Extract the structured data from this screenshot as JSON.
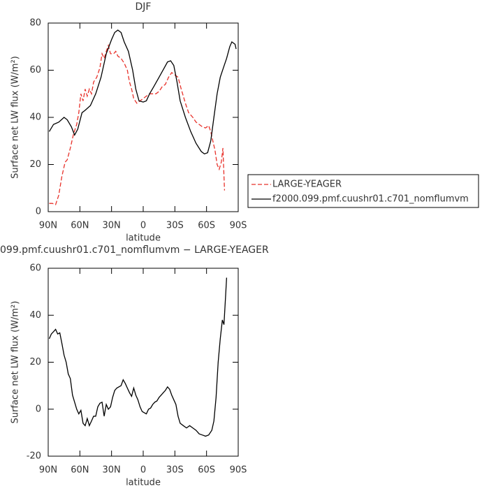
{
  "chart_data": [
    {
      "type": "line",
      "title": "DJF",
      "xlabel": "latitude",
      "ylabel": "Surface net LW flux (W/m²)",
      "xlim": [
        90,
        -90
      ],
      "ylim": [
        0,
        80
      ],
      "xticks": [
        {
          "value": 90,
          "label": "90N"
        },
        {
          "value": 60,
          "label": "60N"
        },
        {
          "value": 30,
          "label": "30N"
        },
        0,
        {
          "value": -30,
          "label": "30S"
        },
        {
          "value": -60,
          "label": "60S"
        },
        {
          "value": -90,
          "label": "90S"
        }
      ],
      "yticks": [
        0,
        20,
        40,
        60,
        80
      ],
      "legend": "right",
      "series": [
        {
          "name": "LARGE-YEAGER",
          "color": "#e8312a",
          "style": "dashed",
          "x": [
            89,
            86,
            83,
            80,
            77,
            74,
            72,
            69,
            66,
            63,
            61,
            59,
            57,
            55,
            53,
            51,
            49,
            47,
            44,
            41,
            39,
            37,
            35,
            33,
            31,
            28,
            26,
            24,
            21,
            18,
            15,
            13,
            11,
            9,
            6,
            3,
            0,
            -3,
            -6,
            -9,
            -12,
            -15,
            -18,
            -21,
            -24,
            -27,
            -30,
            -33,
            -36,
            -40,
            -43,
            -47,
            -50,
            -53,
            -56,
            -59,
            -62,
            -64,
            -66,
            -68,
            -70,
            -72,
            -74,
            -75.5,
            -77
          ],
          "values": [
            3.5,
            3.5,
            3,
            7,
            15,
            21,
            22,
            27,
            33,
            37,
            42,
            50,
            47,
            52,
            49,
            52,
            50,
            55,
            57,
            61,
            67,
            65,
            68,
            70.5,
            67,
            67,
            68,
            66,
            65,
            63,
            60,
            55,
            52,
            48,
            46,
            47,
            48,
            49,
            50,
            50,
            50,
            51,
            53,
            54,
            57,
            59,
            58,
            57,
            52,
            46,
            42,
            40,
            38,
            37,
            36,
            35.5,
            36.5,
            34,
            30,
            26,
            20,
            18,
            21,
            27,
            9
          ]
        },
        {
          "name": "f2000.099.pmf.cuushr01.c701_nomflumvm",
          "color": "#000000",
          "style": "solid",
          "x": [
            89,
            85,
            80,
            75,
            72,
            68,
            65,
            62,
            58,
            55,
            50,
            45,
            40,
            35,
            30,
            27,
            24,
            21,
            18,
            14,
            10,
            7,
            4,
            0,
            -3,
            -6,
            -10,
            -15,
            -20,
            -23,
            -26,
            -29,
            -32,
            -35,
            -40,
            -45,
            -50,
            -55,
            -58,
            -61,
            -64,
            -67,
            -70,
            -73,
            -76,
            -79,
            -82,
            -84,
            -87,
            -88
          ],
          "values": [
            34,
            37,
            38,
            40,
            39,
            36,
            32.5,
            35,
            42,
            43,
            45,
            50,
            57,
            67,
            73,
            76,
            77,
            76,
            72,
            68,
            60,
            52,
            47,
            46.5,
            47,
            50,
            53,
            57,
            61,
            63.5,
            64,
            62,
            55,
            47,
            40,
            34,
            29,
            25.5,
            24.5,
            25,
            30,
            40,
            50,
            57,
            61,
            65,
            70,
            72,
            71,
            69
          ]
        }
      ]
    },
    {
      "type": "line",
      "title": "099.pmf.cuushr01.c701_nomflumvm − LARGE-YEAGER",
      "xlabel": "latitude",
      "ylabel": "Surface net LW flux (W/m²)",
      "xlim": [
        90,
        -90
      ],
      "ylim": [
        -20,
        60
      ],
      "xticks": [
        {
          "value": 90,
          "label": "90N"
        },
        {
          "value": 60,
          "label": "60N"
        },
        {
          "value": 30,
          "label": "30N"
        },
        0,
        {
          "value": -30,
          "label": "30S"
        },
        {
          "value": -60,
          "label": "60S"
        },
        {
          "value": -90,
          "label": "90S"
        }
      ],
      "yticks": [
        -20,
        0,
        20,
        40,
        60
      ],
      "series": [
        {
          "color": "#000000",
          "style": "solid",
          "x": [
            89,
            87,
            85,
            83,
            81,
            79,
            77,
            75,
            73,
            71,
            69,
            67,
            65,
            63,
            61,
            59,
            57,
            55,
            53,
            51,
            49,
            47,
            45,
            43,
            41,
            39,
            37,
            35,
            33,
            31,
            29,
            27,
            25,
            23,
            21,
            19,
            17,
            15,
            13,
            11,
            9,
            7,
            5,
            3,
            1,
            -1,
            -3,
            -5,
            -7,
            -9,
            -11,
            -13,
            -15,
            -17,
            -19,
            -21,
            -23,
            -25,
            -27,
            -29,
            -31,
            -33,
            -35,
            -38,
            -41,
            -44,
            -47,
            -50,
            -53,
            -56,
            -59,
            -62,
            -65,
            -67,
            -69,
            -71,
            -73,
            -75,
            -76.5,
            -78,
            -79
          ],
          "values": [
            30,
            32,
            33,
            34,
            32,
            32.5,
            28,
            23,
            20,
            15,
            13,
            6,
            3,
            0,
            -2,
            -0.5,
            -6,
            -7,
            -4,
            -7,
            -5,
            -3,
            -3,
            1,
            2.5,
            3,
            -3,
            2,
            0,
            1,
            5,
            8,
            9,
            9.5,
            10,
            12.5,
            11,
            9,
            7,
            5.5,
            9,
            6,
            4,
            1,
            -1,
            -1.5,
            -2,
            0,
            0.5,
            2,
            3,
            3.5,
            5,
            6,
            7,
            8,
            9.5,
            8.5,
            6,
            4,
            2,
            -3,
            -6,
            -7,
            -8,
            -7,
            -8,
            -9,
            -10.5,
            -11,
            -11.5,
            -11,
            -9,
            -5,
            5,
            20,
            30,
            38,
            36,
            48,
            56
          ]
        }
      ]
    }
  ]
}
